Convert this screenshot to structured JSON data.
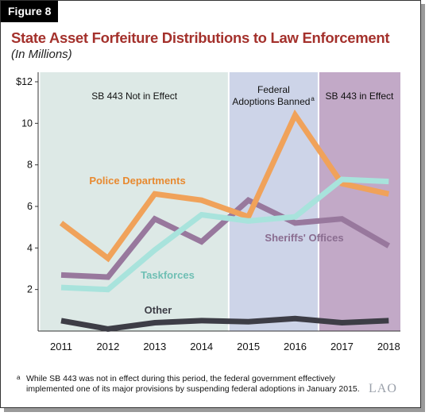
{
  "figure_label": "Figure 8",
  "title": "State Asset Forfeiture Distributions to Law Enforcement",
  "subtitle": "(In Millions)",
  "footnote_marker": "a",
  "footnote": "While SB 443 was not in effect during this period, the federal government effectively implemented one of its major provisions by suspending federal adoptions in January 2015.",
  "logo": "LAO",
  "colors": {
    "region_not_in_effect": "#dde9e6",
    "region_federal": "#cdd4e8",
    "region_in_effect": "#c2a9c7",
    "police": "#f0a25a",
    "taskforces": "#a8e3dc",
    "sheriffs": "#98789d",
    "other": "#3d3d46",
    "police_label": "#e8892f",
    "taskforces_label": "#6fbfb4",
    "sheriffs_label": "#8a6d90",
    "other_label": "#3d3d46"
  },
  "chart_data": {
    "type": "line",
    "x": [
      "2011",
      "2012",
      "2013",
      "2014",
      "2015",
      "2016",
      "2017",
      "2018"
    ],
    "y_ticks": [
      "$12",
      "10",
      "8",
      "6",
      "4",
      "2"
    ],
    "ylim": [
      0,
      12
    ],
    "grid": false,
    "regions": [
      {
        "label": "SB 443 Not in Effect",
        "from": 2010.55,
        "to": 2014.58
      },
      {
        "label": "Federal",
        "label2": "Adoptions Banned",
        "marker": "a",
        "from": 2014.58,
        "to": 2016.5
      },
      {
        "label": "SB 443 in Effect",
        "from": 2016.5,
        "to": 2018.55
      }
    ],
    "series": [
      {
        "name": "Police Departments",
        "key": "police",
        "values": [
          5.2,
          3.5,
          6.6,
          6.3,
          5.5,
          10.4,
          7.1,
          6.6
        ]
      },
      {
        "name": "Taskforces",
        "key": "taskforces",
        "values": [
          2.1,
          2.0,
          3.9,
          5.6,
          5.3,
          5.5,
          7.3,
          7.2
        ]
      },
      {
        "name": "Sheriffs' Offices",
        "key": "sheriffs",
        "values": [
          2.7,
          2.6,
          5.4,
          4.3,
          6.3,
          5.2,
          5.4,
          4.1
        ]
      },
      {
        "name": "Other",
        "key": "other",
        "values": [
          0.5,
          0.1,
          0.4,
          0.5,
          0.45,
          0.6,
          0.4,
          0.5
        ]
      }
    ]
  }
}
